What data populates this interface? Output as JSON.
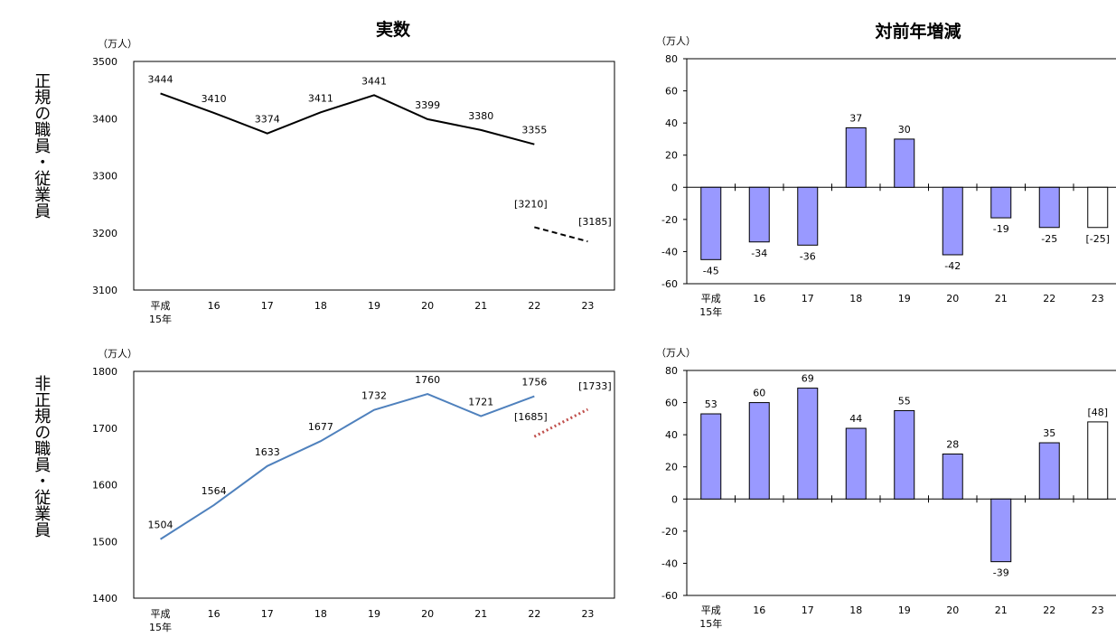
{
  "titles": {
    "left": "実数",
    "right": "対前年増減"
  },
  "row_labels": {
    "top": "正規の職員・従業員",
    "bottom": "非正規の職員・従業員"
  },
  "colors": {
    "regular_line": "#000000",
    "nonregular_line": "#4f81bd",
    "estimate_dots": "#c0504d",
    "bar_fill": "#9999ff",
    "bar_estimate_fill": "#ffffff",
    "axis": "#000000"
  },
  "chart_data": [
    {
      "id": "regular-actual",
      "type": "line",
      "unit": "（万人）",
      "x_labels": [
        "平成\n15年",
        "16",
        "17",
        "18",
        "19",
        "20",
        "21",
        "22",
        "23"
      ],
      "ylim": [
        3100,
        3500
      ],
      "yticks": [
        3100,
        3200,
        3300,
        3400,
        3500
      ],
      "series": [
        {
          "style": "solid",
          "x_index": [
            0,
            1,
            2,
            3,
            4,
            5,
            6,
            7
          ],
          "values": [
            3444,
            3410,
            3374,
            3411,
            3441,
            3399,
            3380,
            3355
          ],
          "labels": [
            "3444",
            "3410",
            "3374",
            "3411",
            "3441",
            "3399",
            "3380",
            "3355"
          ]
        },
        {
          "style": "dashed",
          "x_index": [
            7,
            8
          ],
          "values": [
            3210,
            3185
          ],
          "labels": [
            "[3210]",
            "[3185]"
          ]
        }
      ]
    },
    {
      "id": "regular-change",
      "type": "bar",
      "unit": "（万人）",
      "x_labels": [
        "平成\n15年",
        "16",
        "17",
        "18",
        "19",
        "20",
        "21",
        "22",
        "23"
      ],
      "ylim": [
        -60,
        80
      ],
      "yticks": [
        -60,
        -40,
        -20,
        0,
        20,
        40,
        60,
        80
      ],
      "values": [
        -45,
        -34,
        -36,
        37,
        30,
        -42,
        -19,
        -25,
        -25
      ],
      "labels": [
        "-45",
        "-34",
        "-36",
        "37",
        "30",
        "-42",
        "-19",
        "-25",
        "[-25]"
      ],
      "estimate_index": 8
    },
    {
      "id": "nonregular-actual",
      "type": "line",
      "unit": "（万人）",
      "x_labels": [
        "平成\n15年",
        "16",
        "17",
        "18",
        "19",
        "20",
        "21",
        "22",
        "23"
      ],
      "ylim": [
        1400,
        1800
      ],
      "yticks": [
        1400,
        1500,
        1600,
        1700,
        1800
      ],
      "series": [
        {
          "style": "solid",
          "x_index": [
            0,
            1,
            2,
            3,
            4,
            5,
            6,
            7
          ],
          "values": [
            1504,
            1564,
            1633,
            1677,
            1732,
            1760,
            1721,
            1756
          ],
          "labels": [
            "1504",
            "1564",
            "1633",
            "1677",
            "1732",
            "1760",
            "1721",
            "1756"
          ]
        },
        {
          "style": "dotted",
          "x_index": [
            7,
            8
          ],
          "values": [
            1685,
            1733
          ],
          "labels": [
            "[1685]",
            "[1733]"
          ]
        }
      ]
    },
    {
      "id": "nonregular-change",
      "type": "bar",
      "unit": "（万人）",
      "x_labels": [
        "平成\n15年",
        "16",
        "17",
        "18",
        "19",
        "20",
        "21",
        "22",
        "23"
      ],
      "ylim": [
        -60,
        80
      ],
      "yticks": [
        -60,
        -40,
        -20,
        0,
        20,
        40,
        60,
        80
      ],
      "values": [
        53,
        60,
        69,
        44,
        55,
        28,
        -39,
        35,
        48
      ],
      "labels": [
        "53",
        "60",
        "69",
        "44",
        "55",
        "28",
        "-39",
        "35",
        "[48]"
      ],
      "estimate_index": 8
    }
  ]
}
